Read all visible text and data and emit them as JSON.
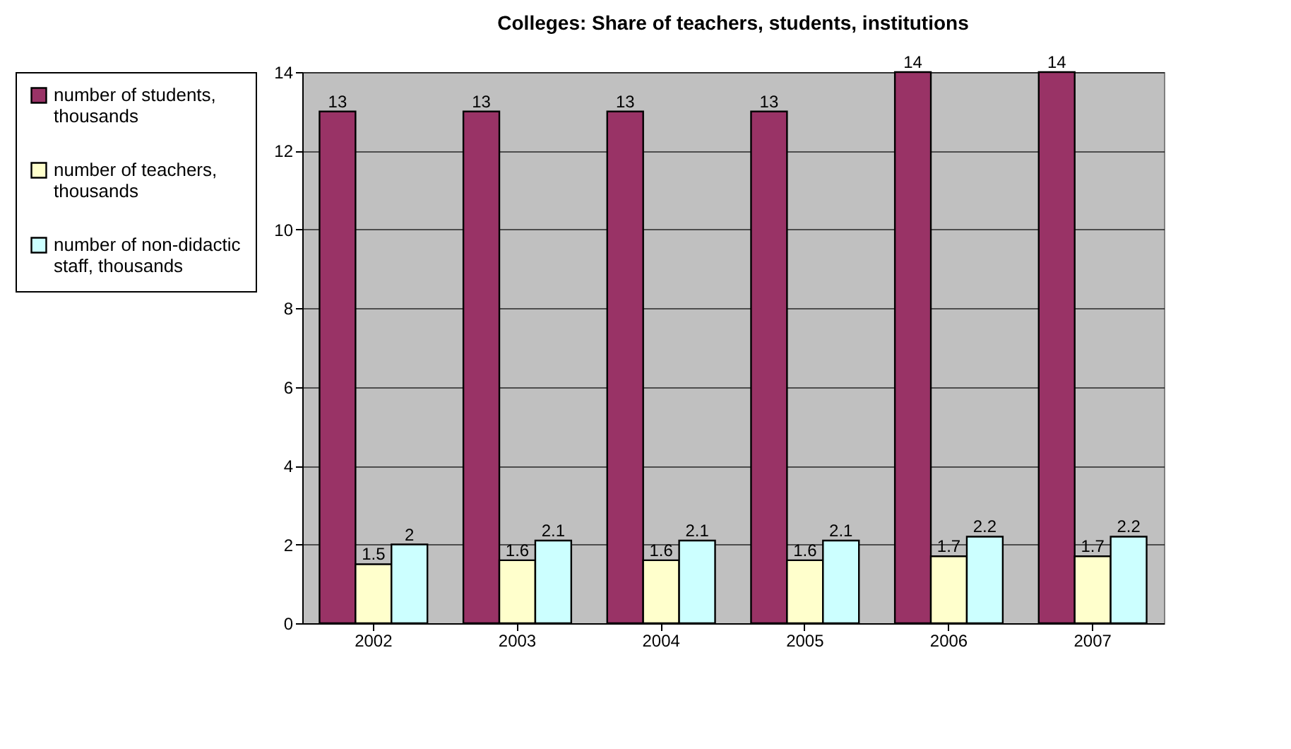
{
  "chart_data": {
    "type": "bar",
    "title": "Colleges: Share of teachers, students, institutions",
    "categories": [
      "2002",
      "2003",
      "2004",
      "2005",
      "2006",
      "2007"
    ],
    "series": [
      {
        "name": "number of students, thousands",
        "color": "#993366",
        "values": [
          13,
          13,
          13,
          13,
          14,
          14
        ]
      },
      {
        "name": "number of teachers, thousands",
        "color": "#ffffcc",
        "values": [
          1.5,
          1.6,
          1.6,
          1.6,
          1.7,
          1.7
        ]
      },
      {
        "name": "number of non-didactic staff, thousands",
        "color": "#ccffff",
        "values": [
          2,
          2.1,
          2.1,
          2.1,
          2.2,
          2.2
        ]
      }
    ],
    "ylim": [
      0,
      14
    ],
    "yticks": [
      0,
      2,
      4,
      6,
      8,
      10,
      12,
      14
    ],
    "grid": "y",
    "legend": "left",
    "data_labels": true
  }
}
